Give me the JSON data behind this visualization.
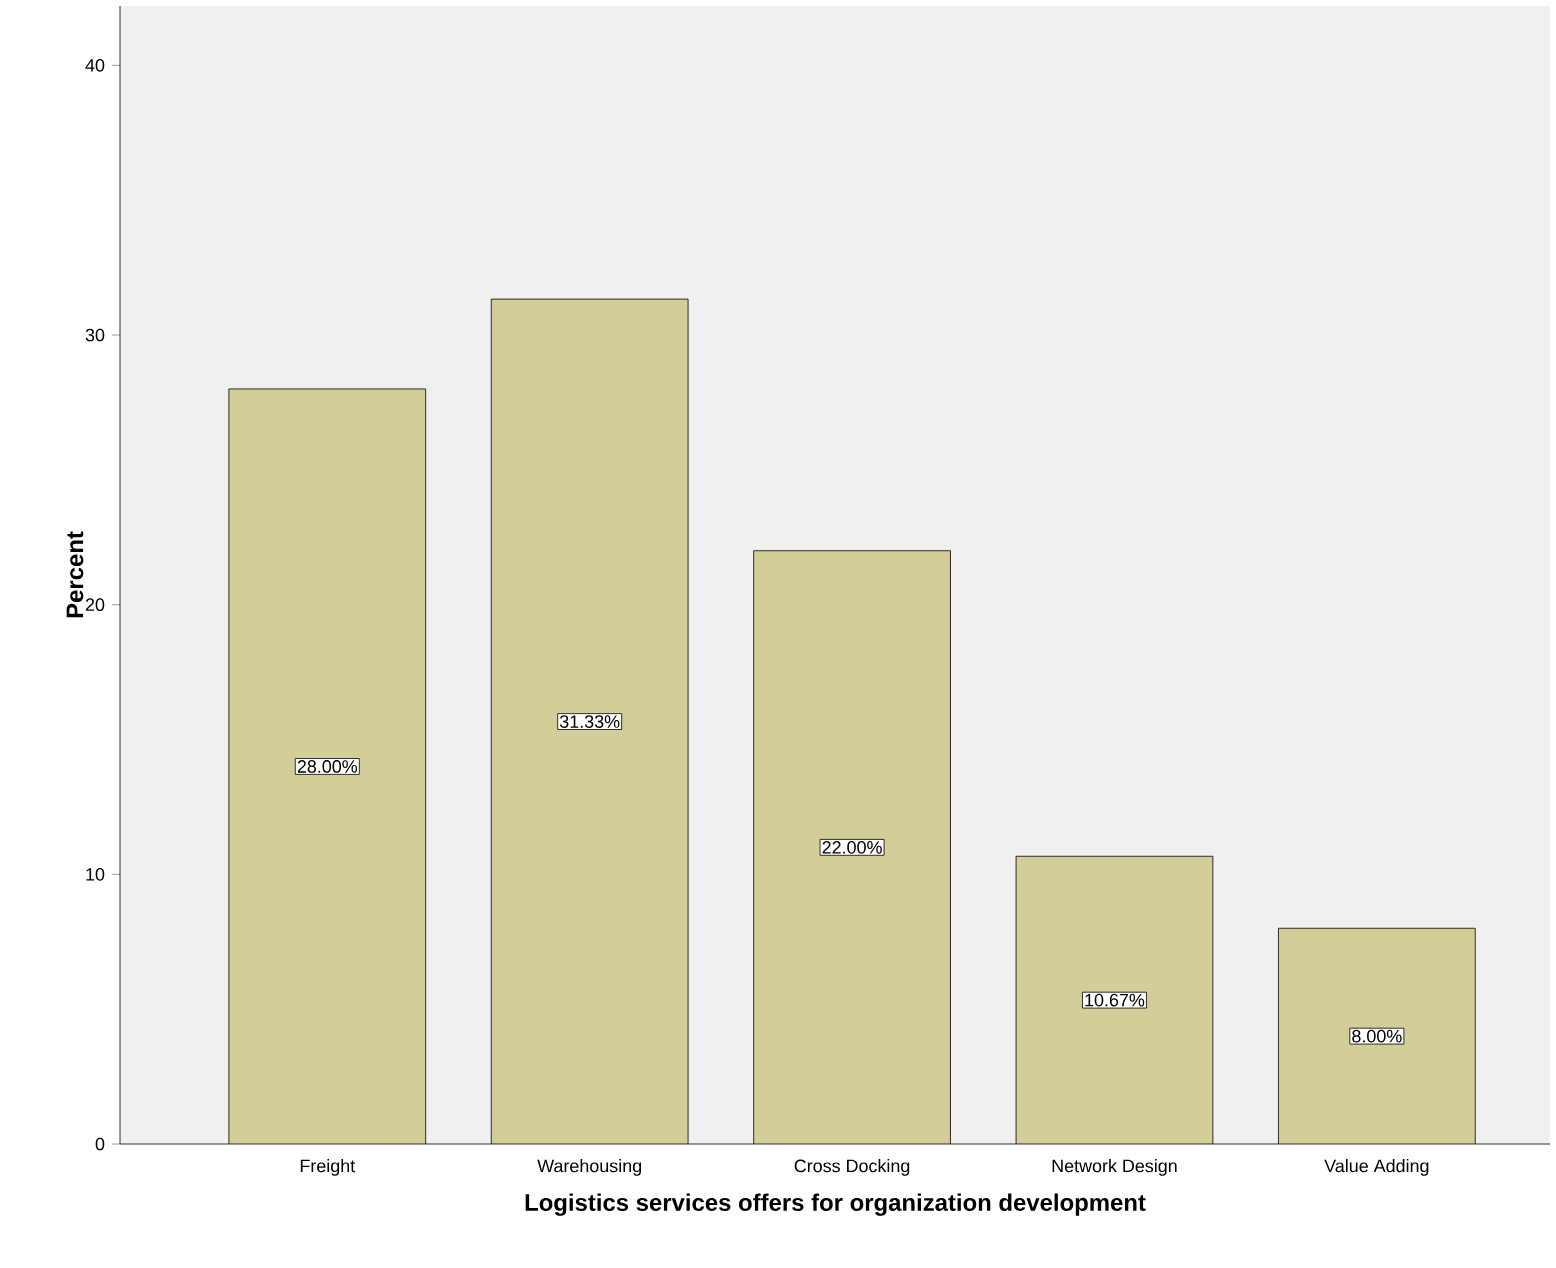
{
  "chart_data": {
    "type": "bar",
    "xlabel": "Logistics services offers for organization development",
    "ylabel": "Percent",
    "categories": [
      "Freight",
      "Warehousing",
      "Cross Docking",
      "Network Design",
      "Value Adding"
    ],
    "values": [
      28.0,
      31.33,
      22.0,
      10.67,
      8.0
    ],
    "value_labels": [
      "28.00%",
      "31.33%",
      "22.00%",
      "10.67%",
      "8.00%"
    ],
    "color": "#d3ce97",
    "ylim": [
      0,
      42.2
    ],
    "yticks": [
      0,
      10,
      20,
      30,
      40
    ]
  }
}
